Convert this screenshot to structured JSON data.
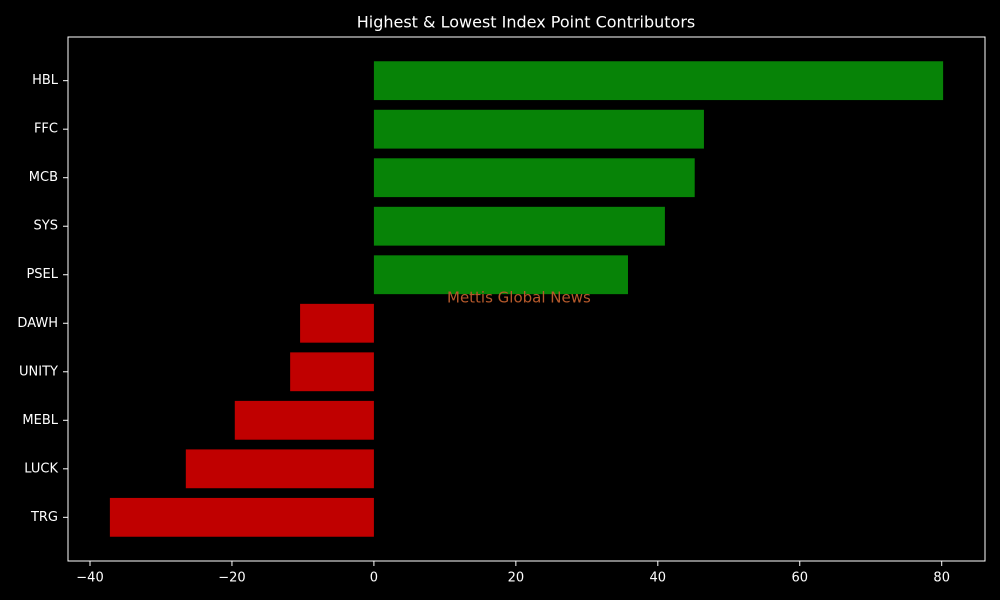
{
  "chart_data": {
    "type": "barh",
    "title": "Highest & Lowest Index Point Contributors",
    "categories": [
      "HBL",
      "FFC",
      "MCB",
      "SYS",
      "PSEL",
      "DAWH",
      "UNITY",
      "MEBL",
      "LUCK",
      "TRG"
    ],
    "values": [
      80.2,
      46.5,
      45.2,
      41.0,
      35.8,
      -10.4,
      -11.8,
      -19.6,
      -26.5,
      -37.2
    ],
    "colors": [
      "#078307",
      "#078307",
      "#078307",
      "#078307",
      "#078307",
      "#c00000",
      "#c00000",
      "#c00000",
      "#c00000",
      "#c00000"
    ],
    "xlim": [
      -43.1,
      86.1
    ],
    "xticks": [
      {
        "value": -40,
        "label": "−40"
      },
      {
        "value": -20,
        "label": "−20"
      },
      0,
      20,
      40,
      60,
      80
    ],
    "annotation": "Mettis Global News"
  }
}
